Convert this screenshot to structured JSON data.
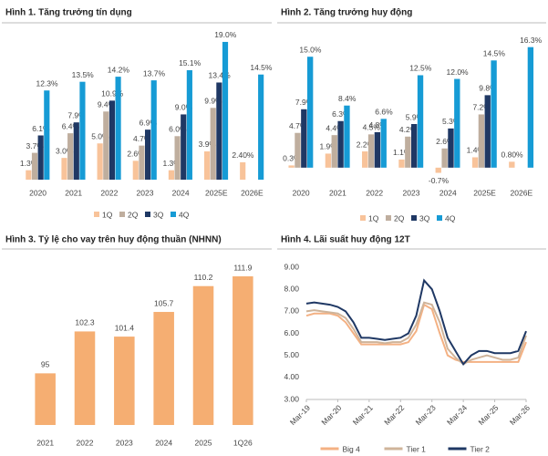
{
  "chart_data": [
    {
      "type": "bar",
      "title": "Hình 1. Tăng trưởng tín dụng",
      "categories": [
        "2020",
        "2021",
        "2022",
        "2023",
        "2024",
        "2025E",
        "2026E"
      ],
      "ylim": [
        0,
        20
      ],
      "legend": "bottom",
      "label_color": "#f0a35e",
      "series": [
        {
          "name": "1Q",
          "color": "#f8c39a",
          "values": [
            1.3,
            3.0,
            5.0,
            2.6,
            1.3,
            3.9,
            2.4
          ],
          "value_labels": [
            "1.3%",
            "3.0%",
            "5.0%",
            "2.6%",
            "1.3%",
            "3.9%",
            "2.40%"
          ]
        },
        {
          "name": "2Q",
          "color": "#bfae9e",
          "values": [
            3.7,
            6.4,
            9.4,
            4.7,
            6.0,
            9.9,
            null
          ],
          "value_labels": [
            "3.7%",
            "6.4%",
            "9.4%",
            "4.7%",
            "6.0%",
            "9.9%",
            null
          ]
        },
        {
          "name": "3Q",
          "color": "#1f3864",
          "values": [
            6.1,
            7.9,
            10.9,
            6.9,
            9.0,
            13.4,
            null
          ],
          "value_labels": [
            "6.1%",
            "7.9%",
            "10.9%",
            "6.9%",
            "9.0%",
            "13.4%",
            null
          ]
        },
        {
          "name": "4Q",
          "color": "#169bd5",
          "values": [
            12.3,
            13.5,
            14.2,
            13.7,
            15.1,
            19.0,
            14.5
          ],
          "value_labels": [
            "12.3%",
            "13.5%",
            "14.2%",
            "13.7%",
            "15.1%",
            "19.0%",
            "14.5%"
          ]
        }
      ]
    },
    {
      "type": "bar",
      "title": "Hình 2. Tăng trưởng huy động",
      "categories": [
        "2020",
        "2021",
        "2022",
        "2023",
        "2024",
        "2025E",
        "2026E"
      ],
      "ylim": [
        -1.5,
        17
      ],
      "legend": "bottom",
      "label_color": "#f0a35e",
      "series": [
        {
          "name": "1Q",
          "color": "#f8c39a",
          "values": [
            0.3,
            1.9,
            2.2,
            1.1,
            -0.7,
            1.4,
            0.8
          ],
          "value_labels": [
            "0.3%",
            "1.9%",
            "2.2%",
            "1.1%",
            "-0.7%",
            "1.4%",
            "0.80%"
          ]
        },
        {
          "name": "2Q",
          "color": "#bfae9e",
          "values": [
            4.7,
            4.4,
            4.5,
            4.2,
            2.6,
            7.2,
            null
          ],
          "value_labels": [
            "4.7%",
            "4.4%",
            "4.5%",
            "4.2%",
            "2.6%",
            "7.2%",
            null
          ]
        },
        {
          "name": "3Q",
          "color": "#1f3864",
          "values": [
            7.9,
            6.3,
            4.8,
            5.9,
            5.3,
            9.8,
            null
          ],
          "value_labels": [
            "7.9%",
            "6.3%",
            "4.8%",
            "5.9%",
            "5.3%",
            "9.8%",
            null
          ]
        },
        {
          "name": "4Q",
          "color": "#169bd5",
          "values": [
            15.0,
            8.4,
            6.6,
            12.5,
            12.0,
            14.5,
            16.3
          ],
          "value_labels": [
            "15.0%",
            "8.4%",
            "6.6%",
            "12.5%",
            "12.0%",
            "14.5%",
            "16.3%"
          ]
        }
      ]
    },
    {
      "type": "column",
      "title": "Hình 3. Tỷ lệ cho vay trên huy động thuần (NHNN)",
      "categories": [
        "2021",
        "2022",
        "2023",
        "2024",
        "2025",
        "1Q26"
      ],
      "values": [
        95,
        102.3,
        101.4,
        105.7,
        110.2,
        111.9
      ],
      "color": "#f5ae72",
      "label_color": "#f0a35e",
      "ylim": [
        86,
        115
      ]
    },
    {
      "type": "line",
      "title": "Hình 4. Lãi suất huy động 12T",
      "categories": [
        "Mar-19",
        null,
        null,
        null,
        "Mar-20",
        null,
        null,
        null,
        "Mar-21",
        null,
        null,
        null,
        "Mar-22",
        null,
        null,
        null,
        "Mar-23",
        null,
        null,
        null,
        "Mar-24",
        null,
        null,
        null,
        "Mar-25",
        null,
        null,
        null,
        "Mar-26"
      ],
      "ylim": [
        3,
        9
      ],
      "yticks": [
        {
          "value": 3,
          "label": "3.00"
        },
        {
          "value": 4,
          "label": "4.00"
        },
        {
          "value": 5,
          "label": "5.00"
        },
        {
          "value": 6,
          "label": "6.00"
        },
        {
          "value": 7,
          "label": "7.00"
        },
        {
          "value": 8,
          "label": "8.00"
        },
        {
          "value": 9,
          "label": "9.00"
        }
      ],
      "grid": false,
      "legend": "bottom",
      "series": [
        {
          "name": "Big 4",
          "color": "#f4b183",
          "values": [
            6.8,
            6.9,
            6.9,
            6.9,
            6.8,
            6.5,
            6.0,
            5.5,
            5.5,
            5.5,
            5.5,
            5.5,
            5.5,
            5.6,
            6.1,
            7.3,
            7.1,
            6.0,
            5.0,
            4.8,
            4.7,
            4.7,
            4.7,
            4.7,
            4.7,
            4.7,
            4.7,
            4.7,
            5.6
          ]
        },
        {
          "name": "Tier 1",
          "color": "#cfb49a",
          "values": [
            7.0,
            7.05,
            7.0,
            6.95,
            6.9,
            6.7,
            6.2,
            5.6,
            5.6,
            5.6,
            5.55,
            5.6,
            5.6,
            5.8,
            6.4,
            7.4,
            7.3,
            6.5,
            5.3,
            4.9,
            4.6,
            4.8,
            4.9,
            5.0,
            4.9,
            4.8,
            4.8,
            4.9,
            5.9
          ]
        },
        {
          "name": "Tier 2",
          "color": "#1f3864",
          "values": [
            7.35,
            7.4,
            7.35,
            7.3,
            7.2,
            7.0,
            6.5,
            5.8,
            5.8,
            5.75,
            5.7,
            5.75,
            5.8,
            6.0,
            6.8,
            8.4,
            8.0,
            7.0,
            5.8,
            5.2,
            4.6,
            5.0,
            5.2,
            5.2,
            5.1,
            5.1,
            5.1,
            5.2,
            6.1
          ]
        }
      ]
    }
  ]
}
